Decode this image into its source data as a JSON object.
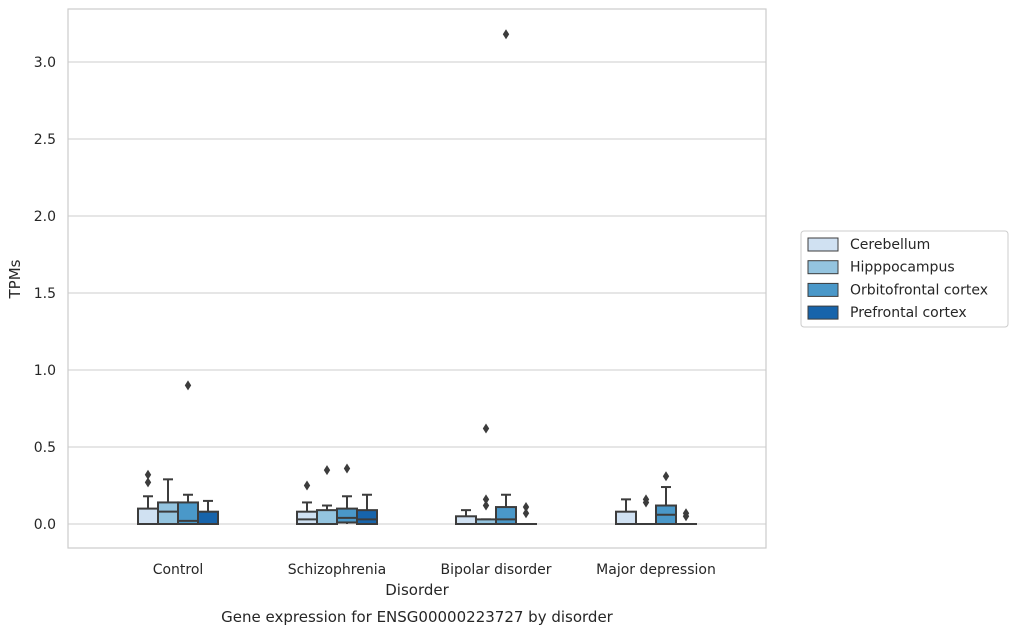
{
  "chart_data": {
    "type": "box",
    "title": "Gene expression for ENSG00000223727 by disorder",
    "xlabel": "Disorder",
    "ylabel": "TPMs",
    "categories": [
      "Control",
      "Schizophrenia",
      "Bipolar disorder",
      "Major depression"
    ],
    "ylim": [
      -0.15,
      3.35
    ],
    "yticks": [
      0.0,
      0.5,
      1.0,
      1.5,
      2.0,
      2.5,
      3.0
    ],
    "ytick_labels": [
      "0.0",
      "0.5",
      "1.0",
      "1.5",
      "2.0",
      "2.5",
      "3.0"
    ],
    "grid": "horizontal",
    "legend_position": "right",
    "series": [
      {
        "name": "Cerebellum",
        "color": "#d0e1f2",
        "boxes": [
          {
            "whislo": 0.0,
            "q1": 0.0,
            "med": 0.0,
            "q3": 0.1,
            "whishi": 0.18,
            "fliers": [
              0.27,
              0.32
            ]
          },
          {
            "whislo": 0.0,
            "q1": 0.0,
            "med": 0.03,
            "q3": 0.08,
            "whishi": 0.14,
            "fliers": [
              0.25
            ]
          },
          {
            "whislo": 0.0,
            "q1": 0.0,
            "med": 0.0,
            "q3": 0.05,
            "whishi": 0.09,
            "fliers": []
          },
          {
            "whislo": 0.0,
            "q1": 0.0,
            "med": 0.0,
            "q3": 0.08,
            "whishi": 0.16,
            "fliers": []
          }
        ]
      },
      {
        "name": "Hipppocampus",
        "color": "#94c4df",
        "boxes": [
          {
            "whislo": 0.0,
            "q1": 0.0,
            "med": 0.08,
            "q3": 0.14,
            "whishi": 0.29,
            "fliers": []
          },
          {
            "whislo": 0.0,
            "q1": 0.0,
            "med": 0.0,
            "q3": 0.09,
            "whishi": 0.12,
            "fliers": [
              0.35
            ]
          },
          {
            "whislo": 0.0,
            "q1": 0.0,
            "med": 0.0,
            "q3": 0.03,
            "whishi": 0.03,
            "fliers": [
              0.12,
              0.16,
              0.62
            ]
          },
          {
            "whislo": 0.0,
            "q1": 0.0,
            "med": 0.0,
            "q3": 0.0,
            "whishi": 0.0,
            "fliers": [
              0.14,
              0.16
            ]
          }
        ]
      },
      {
        "name": "Orbitofrontal cortex",
        "color": "#4a98c9",
        "boxes": [
          {
            "whislo": 0.0,
            "q1": 0.0,
            "med": 0.02,
            "q3": 0.14,
            "whishi": 0.19,
            "fliers": [
              0.9
            ]
          },
          {
            "whislo": 0.0,
            "q1": 0.01,
            "med": 0.04,
            "q3": 0.1,
            "whishi": 0.18,
            "fliers": [
              0.36
            ]
          },
          {
            "whislo": 0.0,
            "q1": 0.0,
            "med": 0.03,
            "q3": 0.11,
            "whishi": 0.19,
            "fliers": [
              3.18
            ]
          },
          {
            "whislo": 0.0,
            "q1": 0.0,
            "med": 0.06,
            "q3": 0.12,
            "whishi": 0.24,
            "fliers": [
              0.31
            ]
          }
        ]
      },
      {
        "name": "Prefrontal cortex",
        "color": "#1764ab",
        "boxes": [
          {
            "whislo": 0.0,
            "q1": 0.0,
            "med": 0.0,
            "q3": 0.08,
            "whishi": 0.15,
            "fliers": []
          },
          {
            "whislo": 0.0,
            "q1": 0.0,
            "med": 0.03,
            "q3": 0.09,
            "whishi": 0.19,
            "fliers": []
          },
          {
            "whislo": 0.0,
            "q1": 0.0,
            "med": 0.0,
            "q3": 0.0,
            "whishi": 0.0,
            "fliers": [
              0.07,
              0.11
            ]
          },
          {
            "whislo": 0.0,
            "q1": 0.0,
            "med": 0.0,
            "q3": 0.0,
            "whishi": 0.0,
            "fliers": [
              0.05,
              0.07
            ]
          }
        ]
      }
    ]
  }
}
